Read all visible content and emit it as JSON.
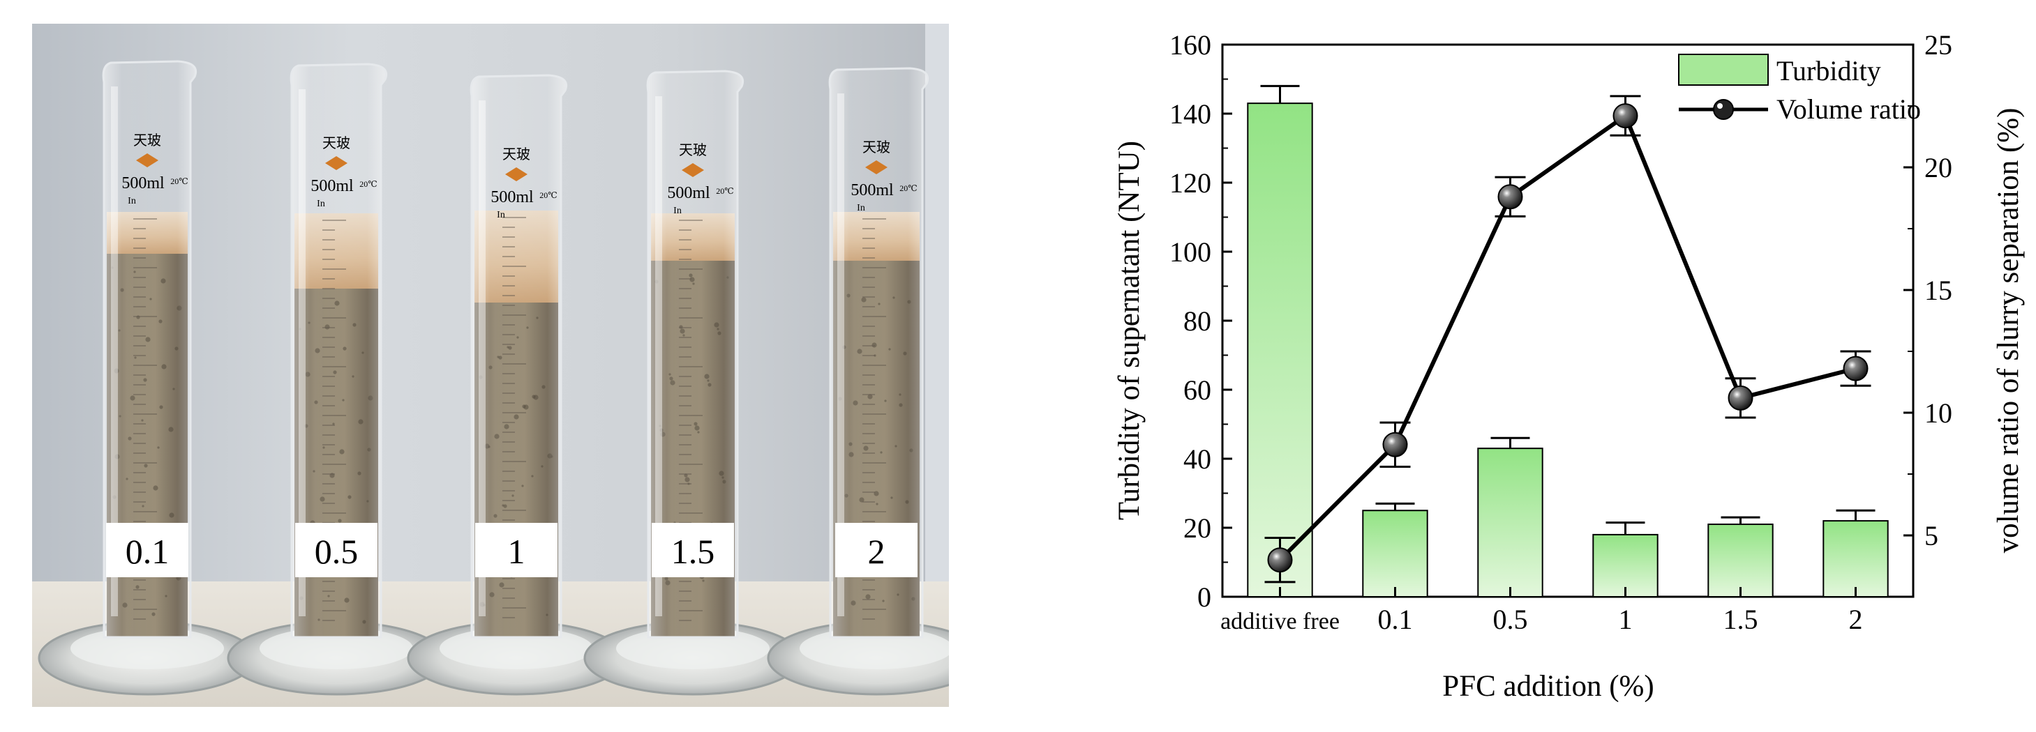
{
  "photo": {
    "cylinders": [
      {
        "tag": "0.1",
        "marking_brand": "天玻",
        "marking_volume": "500ml",
        "marking_tol": "20℃",
        "marking_in": "In"
      },
      {
        "tag": "0.5",
        "marking_brand": "天玻",
        "marking_volume": "500ml",
        "marking_tol": "20℃",
        "marking_in": "In"
      },
      {
        "tag": "1",
        "marking_brand": "天玻",
        "marking_volume": "500ml",
        "marking_tol": "20℃",
        "marking_in": "In"
      },
      {
        "tag": "1.5",
        "marking_brand": "天玻",
        "marking_volume": "500ml",
        "marking_tol": "20℃",
        "marking_in": "In"
      },
      {
        "tag": "2",
        "marking_brand": "天玻",
        "marking_volume": "500ml",
        "marking_tol": "20℃",
        "marking_in": "In"
      }
    ]
  },
  "chart_data": {
    "type": "bar",
    "title": "",
    "xlabel": "PFC addition (%)",
    "ylabel": "Turbidity of supernatant (NTU)",
    "y2label": "volume ratio of slurry separation (%)",
    "categories": [
      "additive free",
      "0.1",
      "0.5",
      "1",
      "1.5",
      "2"
    ],
    "ylim": [
      0,
      160
    ],
    "yticks": [
      0,
      20,
      40,
      60,
      80,
      100,
      120,
      140,
      160
    ],
    "y2lim": [
      2.5,
      25
    ],
    "y2ticks": [
      5,
      10,
      15,
      20,
      25
    ],
    "grid": false,
    "legend": {
      "placement": "top-right",
      "entries": [
        "Turbidity",
        "Volume ratio"
      ]
    },
    "series": [
      {
        "name": "Turbidity",
        "type": "bar",
        "axis": "left",
        "color": "#8fe080",
        "values": [
          143,
          25,
          43,
          18,
          21,
          22
        ],
        "error": [
          5,
          2,
          3,
          3.5,
          2,
          3
        ]
      },
      {
        "name": "Volume ratio",
        "type": "line",
        "axis": "right",
        "color": "#000000",
        "values": [
          4.0,
          8.7,
          18.8,
          22.1,
          10.6,
          11.8
        ],
        "error": [
          0.9,
          0.9,
          0.8,
          0.8,
          0.8,
          0.7
        ]
      }
    ]
  }
}
